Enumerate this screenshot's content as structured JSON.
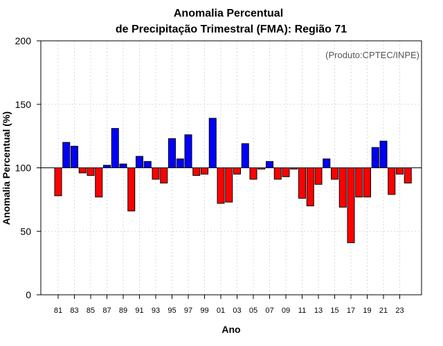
{
  "chart_data": {
    "type": "bar",
    "title_line1": "Anomalia Percentual",
    "title_line2": "de Precipitação Trimestral (FMA): Região 71",
    "source_note": "(Produto:CPTEC/INPE)",
    "xlabel": "Ano",
    "ylabel": "Anomalia Percentual (%)",
    "ylim": [
      0,
      200
    ],
    "yticks": [
      0,
      50,
      100,
      150,
      200
    ],
    "baseline": 100,
    "grid": true,
    "colors": {
      "above": "#0000ff",
      "below": "#ff0000"
    },
    "years": [
      1981,
      1982,
      1983,
      1984,
      1985,
      1986,
      1987,
      1988,
      1989,
      1990,
      1991,
      1992,
      1993,
      1994,
      1995,
      1996,
      1997,
      1998,
      1999,
      2000,
      2001,
      2002,
      2003,
      2004,
      2005,
      2006,
      2007,
      2008,
      2009,
      2010,
      2011,
      2012,
      2013,
      2014,
      2015,
      2016,
      2017,
      2018,
      2019,
      2020,
      2021,
      2022,
      2023,
      2024
    ],
    "values": [
      78,
      120,
      117,
      96,
      94,
      77,
      102,
      131,
      103,
      66,
      109,
      105,
      91,
      88,
      123,
      107,
      126,
      94,
      95,
      139,
      72,
      73,
      95,
      119,
      91,
      99,
      105,
      91,
      93,
      99,
      76,
      70,
      87,
      107,
      91,
      69,
      41,
      77,
      77,
      116,
      121,
      79,
      95,
      88
    ],
    "xtick_labels": [
      "81",
      "83",
      "85",
      "87",
      "89",
      "91",
      "93",
      "95",
      "97",
      "99",
      "01",
      "03",
      "05",
      "07",
      "09",
      "11",
      "13",
      "15",
      "17",
      "19",
      "21",
      "23"
    ]
  }
}
